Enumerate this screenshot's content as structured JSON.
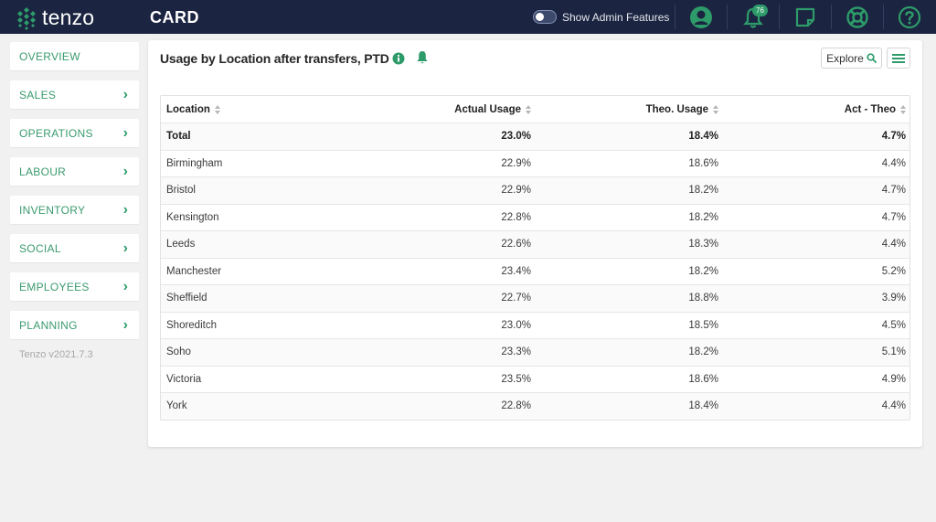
{
  "app": {
    "logo_text": "tenzo",
    "page_title": "CARD"
  },
  "topbar": {
    "admin_toggle_label": "Show Admin Features",
    "notification_count": "76"
  },
  "sidebar": {
    "items": [
      {
        "label": "OVERVIEW",
        "has_chevron": false
      },
      {
        "label": "SALES",
        "has_chevron": true
      },
      {
        "label": "OPERATIONS",
        "has_chevron": true
      },
      {
        "label": "LABOUR",
        "has_chevron": true
      },
      {
        "label": "INVENTORY",
        "has_chevron": true
      },
      {
        "label": "SOCIAL",
        "has_chevron": true
      },
      {
        "label": "EMPLOYEES",
        "has_chevron": true
      },
      {
        "label": "PLANNING",
        "has_chevron": true
      }
    ],
    "version": "Tenzo v2021.7.3"
  },
  "card": {
    "title": "Usage by Location after transfers, PTD",
    "explore_label": "Explore",
    "table": {
      "headers": [
        "Location",
        "Actual Usage",
        "Theo. Usage",
        "Act - Theo"
      ],
      "rows": [
        [
          "Total",
          "23.0%",
          "18.4%",
          "4.7%"
        ],
        [
          "Birmingham",
          "22.9%",
          "18.6%",
          "4.4%"
        ],
        [
          "Bristol",
          "22.9%",
          "18.2%",
          "4.7%"
        ],
        [
          "Kensington",
          "22.8%",
          "18.2%",
          "4.7%"
        ],
        [
          "Leeds",
          "22.6%",
          "18.3%",
          "4.4%"
        ],
        [
          "Manchester",
          "23.4%",
          "18.2%",
          "5.2%"
        ],
        [
          "Sheffield",
          "22.7%",
          "18.8%",
          "3.9%"
        ],
        [
          "Shoreditch",
          "23.0%",
          "18.5%",
          "4.5%"
        ],
        [
          "Soho",
          "23.3%",
          "18.2%",
          "5.1%"
        ],
        [
          "Victoria",
          "23.5%",
          "18.6%",
          "4.9%"
        ],
        [
          "York",
          "22.8%",
          "18.4%",
          "4.4%"
        ]
      ]
    }
  },
  "colors": {
    "topbar_bg": "#1b2440",
    "accent_green": "#2e9b6a",
    "nav_text": "#3a9a6e"
  }
}
